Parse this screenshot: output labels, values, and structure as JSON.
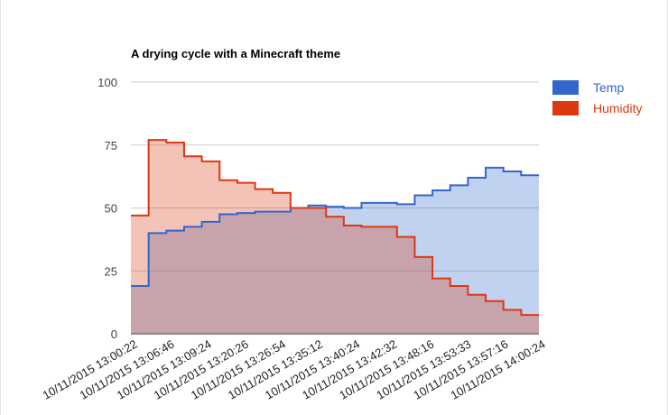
{
  "chart_data": {
    "type": "area",
    "title": "A drying cycle with a Minecraft theme",
    "xlabel": "",
    "ylabel": "",
    "ylim": [
      0,
      100
    ],
    "yticks": [
      "0",
      "25",
      "50",
      "75",
      "100"
    ],
    "x_tick_labels": [
      "10/11/2015 13:00:22",
      "10/11/2015 13:06:46",
      "10/11/2015 13:09:24",
      "10/11/2015 13:20:26",
      "10/11/2015 13:26:54",
      "10/11/2015 13:35:12",
      "10/11/2015 13:40:24",
      "10/11/2015 13:42:32",
      "10/11/2015 13:48:16",
      "10/11/2015 13:53:33",
      "10/11/2015 13:57:16",
      "10/11/2015 14:00:24"
    ],
    "step": true,
    "grid": true,
    "legend_position": "right",
    "series": [
      {
        "name": "Temp",
        "color": "#3366cc",
        "values": [
          19,
          40,
          41,
          42.5,
          44.5,
          47.5,
          48,
          48.5,
          48.5,
          50,
          51,
          50.5,
          50,
          52,
          52,
          51.5,
          55,
          57,
          59,
          62,
          66,
          64.5,
          63
        ]
      },
      {
        "name": "Humidity",
        "color": "#dc3912",
        "values": [
          47,
          77,
          76,
          70.5,
          68.5,
          61,
          60,
          57.5,
          56,
          50,
          50,
          46.5,
          43,
          42.5,
          42.5,
          38.5,
          30.5,
          22,
          19,
          15.5,
          13,
          9.5,
          7.5
        ]
      }
    ]
  }
}
